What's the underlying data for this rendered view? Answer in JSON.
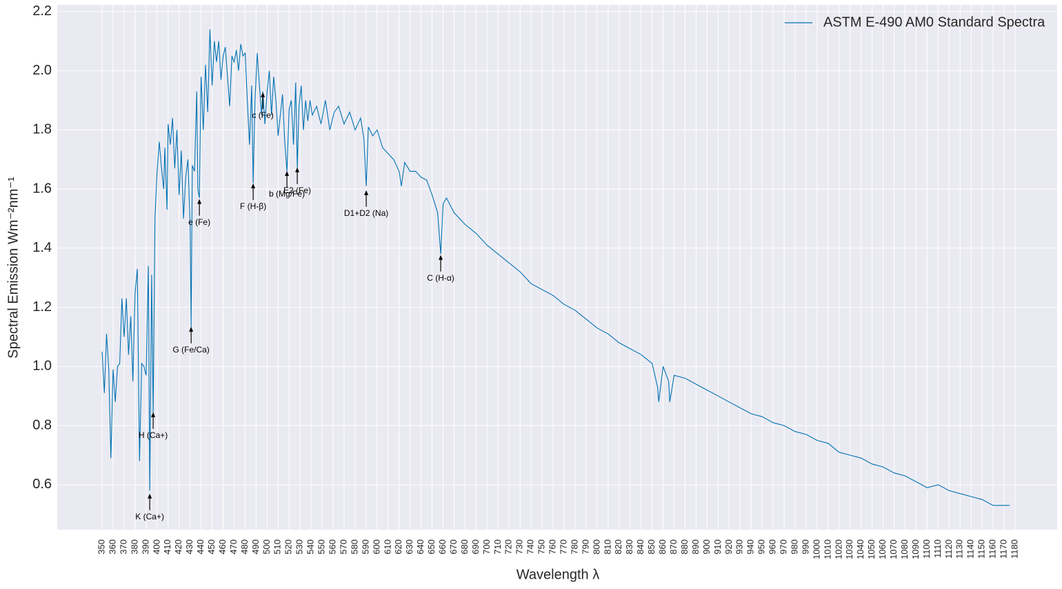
{
  "chart_data": {
    "type": "line",
    "xlabel": "Wavelength λ",
    "ylabel": "Spectral Emission Wm⁻²nm⁻¹",
    "legend": "upper right",
    "grid": true,
    "xlim": [
      309.2,
      1218.2
    ],
    "ylim": [
      0.448,
      2.223
    ],
    "yticks": [
      {
        "value": 0.6,
        "label": "0.6"
      },
      {
        "value": 0.8,
        "label": "0.8"
      },
      {
        "value": 1.0,
        "label": "1.0"
      },
      {
        "value": 1.2,
        "label": "1.2"
      },
      {
        "value": 1.4,
        "label": "1.4"
      },
      {
        "value": 1.6,
        "label": "1.6"
      },
      {
        "value": 1.8,
        "label": "1.8"
      },
      {
        "value": 2.0,
        "label": "2.0"
      },
      {
        "value": 2.2,
        "label": "2.2"
      }
    ],
    "xticks": [
      350,
      360,
      370,
      380,
      390,
      400,
      410,
      420,
      430,
      440,
      450,
      460,
      470,
      480,
      490,
      500,
      510,
      520,
      530,
      540,
      550,
      560,
      570,
      580,
      590,
      600,
      610,
      620,
      630,
      640,
      650,
      660,
      670,
      680,
      690,
      700,
      710,
      720,
      730,
      740,
      750,
      760,
      770,
      780,
      790,
      800,
      810,
      820,
      830,
      840,
      850,
      860,
      870,
      880,
      890,
      900,
      910,
      920,
      930,
      940,
      950,
      960,
      970,
      980,
      990,
      1000,
      1010,
      1020,
      1030,
      1040,
      1050,
      1060,
      1070,
      1080,
      1090,
      1100,
      1110,
      1120,
      1130,
      1140,
      1150,
      1160,
      1170,
      1180
    ],
    "series": [
      {
        "name": "ASTM E-490 AM0 Standard Spectra",
        "color": "#0072b2",
        "x": [
          350,
          352,
          354,
          356,
          358,
          360,
          362,
          364,
          366,
          368,
          370,
          372,
          374,
          376,
          378,
          380,
          382,
          384,
          386,
          388,
          390,
          392,
          393.3,
          395,
          396.4,
          398,
          400,
          402,
          404,
          406,
          407,
          409,
          410,
          412,
          414,
          416,
          418,
          420,
          422,
          424,
          426,
          428,
          430,
          430.9,
          432,
          434,
          436,
          437,
          438.4,
          440,
          442,
          444,
          446,
          448,
          450,
          452,
          454,
          456,
          458,
          460,
          462,
          464,
          466,
          468,
          470,
          472,
          474,
          476,
          478,
          480,
          482,
          484,
          486,
          487.3,
          489,
          491,
          493,
          495,
          496.1,
          498,
          500,
          502,
          504,
          506,
          508,
          510,
          512,
          514,
          516,
          518,
          520,
          522,
          524,
          526,
          527.4,
          529,
          531,
          533,
          535,
          537,
          539,
          541,
          545,
          549,
          553,
          557,
          561,
          565,
          570,
          575,
          580,
          585,
          588,
          590.1,
          592,
          596,
          600,
          605,
          610,
          615,
          620,
          622,
          625,
          630,
          635,
          640,
          645,
          650,
          655,
          657.8,
          660,
          663,
          670,
          680,
          690,
          700,
          710,
          720,
          730,
          740,
          750,
          760,
          770,
          780,
          790,
          800,
          810,
          820,
          830,
          840,
          850,
          855,
          856,
          860,
          865,
          866,
          870,
          880,
          890,
          900,
          910,
          920,
          930,
          940,
          950,
          960,
          970,
          980,
          990,
          1000,
          1010,
          1020,
          1030,
          1040,
          1050,
          1060,
          1070,
          1080,
          1090,
          1100,
          1110,
          1120,
          1130,
          1140,
          1150,
          1160,
          1170,
          1175
        ],
        "values": [
          1.05,
          0.91,
          1.11,
          0.99,
          0.69,
          0.99,
          0.88,
          1.0,
          1.01,
          1.23,
          1.1,
          1.23,
          1.04,
          1.17,
          0.95,
          1.25,
          1.33,
          0.68,
          1.01,
          1.0,
          0.97,
          1.34,
          0.58,
          1.31,
          0.84,
          1.5,
          1.66,
          1.76,
          1.67,
          1.6,
          1.74,
          1.53,
          1.82,
          1.75,
          1.84,
          1.67,
          1.8,
          1.58,
          1.73,
          1.5,
          1.64,
          1.7,
          1.48,
          1.13,
          1.68,
          1.66,
          1.93,
          1.6,
          1.57,
          1.98,
          1.8,
          2.02,
          1.86,
          2.14,
          1.95,
          2.1,
          2.03,
          2.1,
          1.97,
          2.05,
          2.08,
          1.98,
          1.88,
          2.05,
          2.03,
          2.07,
          2.0,
          2.09,
          2.05,
          2.06,
          1.9,
          1.75,
          1.95,
          1.62,
          1.9,
          2.06,
          1.95,
          1.85,
          1.93,
          1.82,
          1.93,
          2.0,
          1.85,
          1.98,
          1.9,
          1.78,
          1.85,
          1.92,
          1.76,
          1.66,
          1.87,
          1.9,
          1.75,
          1.96,
          1.67,
          1.88,
          1.95,
          1.8,
          1.9,
          1.83,
          1.9,
          1.85,
          1.88,
          1.82,
          1.9,
          1.8,
          1.86,
          1.88,
          1.82,
          1.86,
          1.8,
          1.84,
          1.77,
          1.61,
          1.81,
          1.78,
          1.8,
          1.74,
          1.72,
          1.7,
          1.66,
          1.61,
          1.69,
          1.66,
          1.66,
          1.64,
          1.63,
          1.58,
          1.52,
          1.38,
          1.55,
          1.57,
          1.52,
          1.48,
          1.45,
          1.41,
          1.38,
          1.35,
          1.32,
          1.28,
          1.26,
          1.24,
          1.21,
          1.19,
          1.16,
          1.13,
          1.11,
          1.08,
          1.06,
          1.04,
          1.01,
          0.93,
          0.88,
          1.0,
          0.95,
          0.88,
          0.97,
          0.96,
          0.94,
          0.92,
          0.9,
          0.88,
          0.86,
          0.84,
          0.83,
          0.81,
          0.8,
          0.78,
          0.77,
          0.75,
          0.74,
          0.71,
          0.7,
          0.69,
          0.67,
          0.66,
          0.64,
          0.63,
          0.61,
          0.59,
          0.6,
          0.58,
          0.57,
          0.56,
          0.55,
          0.53,
          0.53,
          0.53
        ]
      }
    ],
    "annotations": [
      {
        "text": "K (Ca+)",
        "x": 393.3,
        "y": 0.57
      },
      {
        "text": "H (Ca+)",
        "x": 396.4,
        "y": 0.845
      },
      {
        "text": "G (Fe/Ca)",
        "x": 430.9,
        "y": 1.134
      },
      {
        "text": "e (Fe)",
        "x": 438.4,
        "y": 1.566
      },
      {
        "text": "F (H-β)",
        "x": 487.3,
        "y": 1.619
      },
      {
        "text": "c (Fe)",
        "x": 496.1,
        "y": 1.927
      },
      {
        "text": "b (Mg/Fe)",
        "x": 518,
        "y": 1.661
      },
      {
        "text": "E2 (Fe)",
        "x": 527.4,
        "y": 1.673
      },
      {
        "text": "D1+D2 (Na)",
        "x": 590.1,
        "y": 1.596
      },
      {
        "text": "C (H-α)",
        "x": 657.8,
        "y": 1.377
      }
    ]
  }
}
